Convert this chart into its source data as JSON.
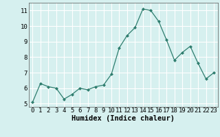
{
  "x": [
    0,
    1,
    2,
    3,
    4,
    5,
    6,
    7,
    8,
    9,
    10,
    11,
    12,
    13,
    14,
    15,
    16,
    17,
    18,
    19,
    20,
    21,
    22,
    23
  ],
  "y": [
    5.1,
    6.3,
    6.1,
    6.0,
    5.3,
    5.6,
    6.0,
    5.9,
    6.1,
    6.2,
    6.9,
    8.6,
    9.4,
    9.9,
    11.1,
    11.0,
    10.3,
    9.1,
    7.8,
    8.3,
    8.7,
    7.6,
    6.6,
    7.0
  ],
  "xlabel": "Humidex (Indice chaleur)",
  "ylim": [
    4.8,
    11.5
  ],
  "xlim": [
    -0.5,
    23.5
  ],
  "yticks": [
    5,
    6,
    7,
    8,
    9,
    10,
    11
  ],
  "xticks": [
    0,
    1,
    2,
    3,
    4,
    5,
    6,
    7,
    8,
    9,
    10,
    11,
    12,
    13,
    14,
    15,
    16,
    17,
    18,
    19,
    20,
    21,
    22,
    23
  ],
  "line_color": "#2e7d6e",
  "marker_color": "#2e7d6e",
  "bg_color": "#d6f0ef",
  "grid_color": "#ffffff",
  "tick_fontsize": 6.5,
  "label_fontsize": 7.5
}
